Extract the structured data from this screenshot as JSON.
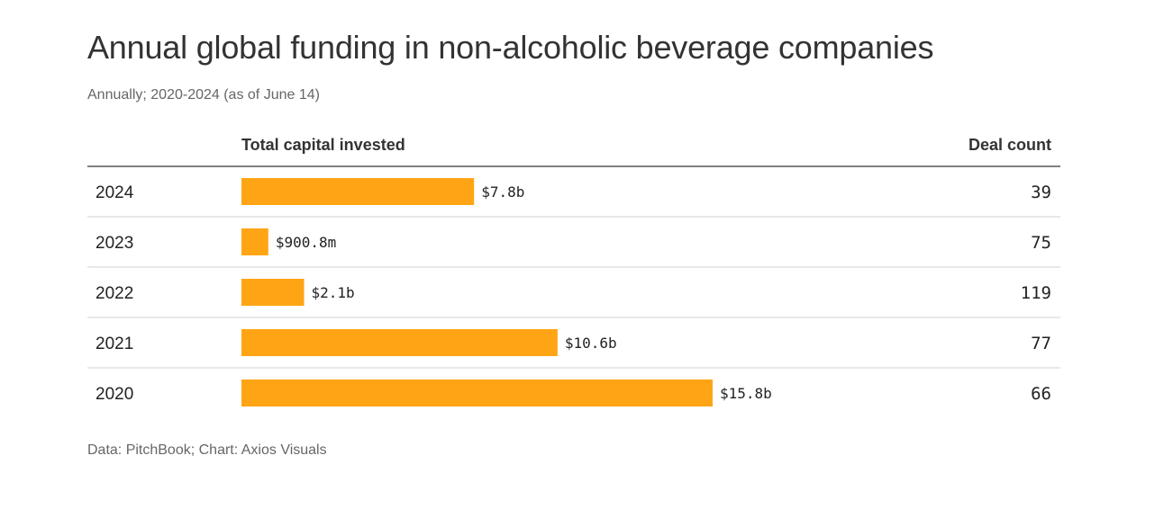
{
  "chart_data": {
    "type": "bar",
    "orientation": "horizontal",
    "title": "Annual global funding in non-alcoholic beverage companies",
    "subtitle": "Annually; 2020-2024 (as of June 14)",
    "source": "Data: PitchBook; Chart: Axios Visuals",
    "columns": {
      "label": "",
      "bar": "Total capital invested",
      "count": "Deal count"
    },
    "categories": [
      "2024",
      "2023",
      "2022",
      "2021",
      "2020"
    ],
    "values": [
      7.8,
      0.9008,
      2.1,
      10.6,
      15.8
    ],
    "value_labels": [
      "$7.8b",
      "$900.8m",
      "$2.1b",
      "$10.6b",
      "$15.8b"
    ],
    "deal_counts": [
      "39",
      "75",
      "119",
      "77",
      "66"
    ],
    "units": "billions USD",
    "xlim": [
      0,
      15.8
    ],
    "bar_color": "#FFA515"
  }
}
